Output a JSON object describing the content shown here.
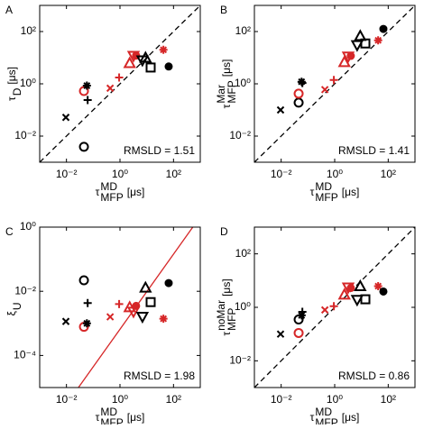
{
  "chart_data": [
    {
      "type": "scatter",
      "panel": "A",
      "annotation": "RMSLD = 1.51",
      "xlabel": {
        "symbol": "τ",
        "sub": "MFP",
        "sup": "MD",
        "unit": "[μs]"
      },
      "ylabel": {
        "symbol": "τ",
        "sub": "D",
        "unit": "[μs]"
      },
      "log_x": true,
      "log_y": true,
      "xlim": [
        0.001,
        1000
      ],
      "ylim": [
        0.001,
        1000
      ],
      "xticks": [
        {
          "value": 0.01,
          "label": "10⁻²"
        },
        {
          "value": 1,
          "label": "10⁰"
        },
        {
          "value": 100,
          "label": "10²"
        }
      ],
      "yticks": [
        {
          "value": 0.01,
          "label": "10⁻²"
        },
        {
          "value": 1,
          "label": "10⁰"
        },
        {
          "value": 100,
          "label": "10²"
        }
      ],
      "reference_line": {
        "x": [
          0.001,
          1000
        ],
        "y": [
          0.001,
          1000
        ],
        "color": "#000000",
        "dashed": true
      },
      "x": [
        0.0095,
        0.045,
        0.045,
        0.062,
        0.058,
        0.43,
        0.93,
        2.3,
        3.2,
        4,
        6.9,
        9,
        14,
        42,
        66
      ],
      "values": [
        0.052,
        0.0039,
        0.53,
        0.24,
        0.85,
        0.68,
        1.74,
        6.2,
        11.7,
        12,
        7.9,
        10,
        4.2,
        20,
        4.6
      ],
      "markers": [
        "x",
        "o",
        "o",
        "+",
        "*",
        "x",
        "+",
        "^",
        "v",
        "filled-o",
        "v",
        "^",
        "s",
        "*",
        "filled-o"
      ],
      "colors": [
        "#000000",
        "#000000",
        "#d62728",
        "#000000",
        "#000000",
        "#d62728",
        "#d62728",
        "#d62728",
        "#d62728",
        "#d62728",
        "#000000",
        "#000000",
        "#000000",
        "#d62728",
        "#000000"
      ]
    },
    {
      "type": "scatter",
      "panel": "B",
      "annotation": "RMSLD = 1.41",
      "xlabel": {
        "symbol": "τ",
        "sub": "MFP",
        "sup": "MD",
        "unit": "[μs]"
      },
      "ylabel": {
        "symbol": "τ",
        "sub": "MFP",
        "sup": "Mar",
        "unit": "[μs]"
      },
      "log_x": true,
      "log_y": true,
      "xlim": [
        0.001,
        1000
      ],
      "ylim": [
        0.001,
        1000
      ],
      "xticks": [
        {
          "value": 0.01,
          "label": "10⁻²"
        },
        {
          "value": 1,
          "label": "10⁰"
        },
        {
          "value": 100,
          "label": "10²"
        }
      ],
      "yticks": [
        {
          "value": 0.01,
          "label": "10⁻²"
        },
        {
          "value": 1,
          "label": "10⁰"
        },
        {
          "value": 100,
          "label": "10²"
        }
      ],
      "reference_line": {
        "x": [
          0.001,
          1000
        ],
        "y": [
          0.001,
          1000
        ],
        "color": "#000000",
        "dashed": true
      },
      "x": [
        0.0095,
        0.045,
        0.045,
        0.062,
        0.058,
        0.43,
        0.93,
        2.3,
        3.2,
        4,
        6.9,
        9,
        14,
        42,
        66
      ],
      "values": [
        0.1,
        0.19,
        0.42,
        1.07,
        1.2,
        0.6,
        1.4,
        6.8,
        11,
        11.7,
        30,
        68,
        35,
        46,
        126
      ],
      "markers": [
        "x",
        "o",
        "o",
        "+",
        "*",
        "x",
        "+",
        "^",
        "v",
        "filled-o",
        "v",
        "^",
        "s",
        "*",
        "filled-o"
      ],
      "colors": [
        "#000000",
        "#000000",
        "#d62728",
        "#000000",
        "#000000",
        "#d62728",
        "#d62728",
        "#d62728",
        "#d62728",
        "#d62728",
        "#000000",
        "#000000",
        "#000000",
        "#d62728",
        "#000000"
      ]
    },
    {
      "type": "scatter",
      "panel": "C",
      "annotation": "RMSLD = 1.98",
      "xlabel": {
        "symbol": "τ",
        "sub": "MFP",
        "sup": "MD",
        "unit": "[μs]"
      },
      "ylabel": {
        "symbol": "ξ",
        "sub": "U"
      },
      "log_x": true,
      "log_y": true,
      "xlim": [
        0.001,
        1000
      ],
      "ylim": [
        1e-05,
        1
      ],
      "xticks": [
        {
          "value": 0.01,
          "label": "10⁻²"
        },
        {
          "value": 1,
          "label": "10⁰"
        },
        {
          "value": 100,
          "label": "10²"
        }
      ],
      "yticks": [
        {
          "value": 0.0001,
          "label": "10⁻⁴"
        },
        {
          "value": 0.01,
          "label": "10⁻²"
        },
        {
          "value": 1,
          "label": "10⁰"
        }
      ],
      "reference_line": {
        "x": [
          0.028,
          525
        ],
        "y": [
          1e-05,
          1
        ],
        "color": "#d62728",
        "dashed": false
      },
      "x": [
        0.0095,
        0.045,
        0.045,
        0.062,
        0.058,
        0.43,
        0.93,
        2.3,
        3.2,
        4,
        6.9,
        9,
        14,
        42,
        66
      ],
      "values": [
        0.00115,
        0.022,
        0.00078,
        0.0043,
        0.001,
        0.0016,
        0.004,
        0.0032,
        0.0023,
        0.0035,
        0.0016,
        0.013,
        0.0046,
        0.0014,
        0.018
      ],
      "markers": [
        "x",
        "o",
        "o",
        "+",
        "*",
        "x",
        "+",
        "^",
        "v",
        "filled-o",
        "v",
        "^",
        "s",
        "*",
        "filled-o"
      ],
      "colors": [
        "#000000",
        "#000000",
        "#d62728",
        "#000000",
        "#000000",
        "#d62728",
        "#d62728",
        "#d62728",
        "#d62728",
        "#d62728",
        "#000000",
        "#000000",
        "#000000",
        "#d62728",
        "#000000"
      ]
    },
    {
      "type": "scatter",
      "panel": "D",
      "annotation": "RMSLD = 0.86",
      "xlabel": {
        "symbol": "τ",
        "sub": "MFP",
        "sup": "MD",
        "unit": "[μs]"
      },
      "ylabel": {
        "symbol": "τ",
        "sub": "MFP",
        "sup": "noMar",
        "unit": "[μs]"
      },
      "log_x": true,
      "log_y": true,
      "xlim": [
        0.001,
        1000
      ],
      "ylim": [
        0.001,
        1000
      ],
      "xticks": [
        {
          "value": 0.01,
          "label": "10⁻²"
        },
        {
          "value": 1,
          "label": "10⁰"
        },
        {
          "value": 100,
          "label": "10²"
        }
      ],
      "yticks": [
        {
          "value": 0.01,
          "label": "10⁻²"
        },
        {
          "value": 1,
          "label": "10⁰"
        },
        {
          "value": 100,
          "label": "10²"
        }
      ],
      "reference_line": {
        "x": [
          0.001,
          1000
        ],
        "y": [
          0.001,
          1000
        ],
        "color": "#000000",
        "dashed": true
      },
      "x": [
        0.0095,
        0.045,
        0.045,
        0.062,
        0.058,
        0.43,
        0.93,
        2.3,
        3.2,
        4,
        6.9,
        9,
        14,
        42,
        66
      ],
      "values": [
        0.1,
        0.35,
        0.11,
        0.68,
        0.5,
        0.8,
        1.1,
        3,
        5.5,
        5.3,
        1.9,
        6.2,
        2,
        6.2,
        3.9
      ],
      "markers": [
        "x",
        "o",
        "o",
        "+",
        "*",
        "x",
        "+",
        "^",
        "v",
        "filled-o",
        "v",
        "^",
        "s",
        "*",
        "filled-o"
      ],
      "colors": [
        "#000000",
        "#000000",
        "#d62728",
        "#000000",
        "#000000",
        "#d62728",
        "#d62728",
        "#d62728",
        "#d62728",
        "#d62728",
        "#000000",
        "#000000",
        "#000000",
        "#d62728",
        "#000000"
      ]
    }
  ]
}
